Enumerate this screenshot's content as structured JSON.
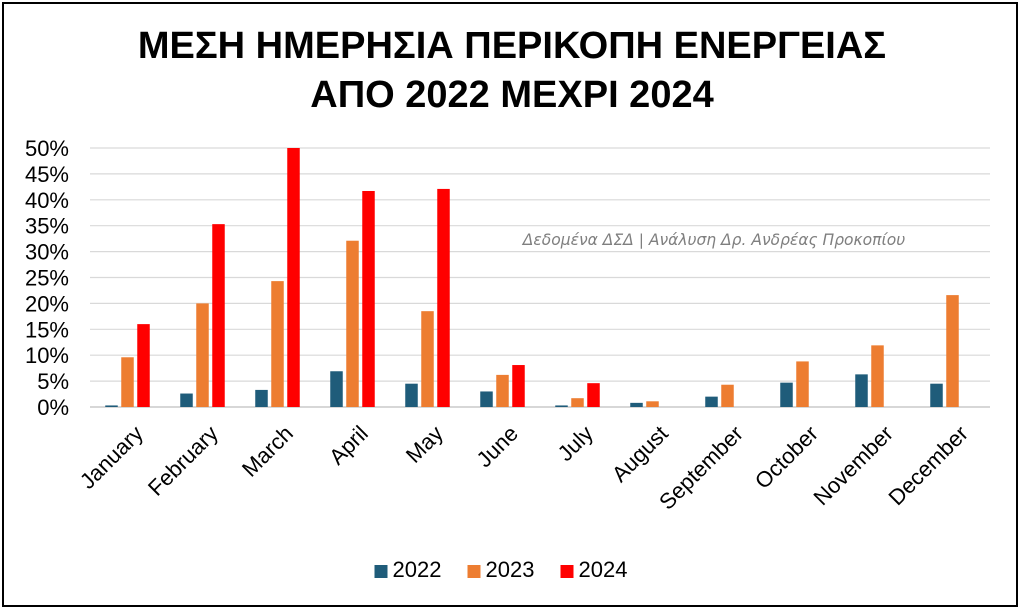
{
  "chart_data": {
    "type": "bar",
    "title_lines": [
      "ΜΕΣΗ ΗΜΕΡΗΣΙΑ ΠΕΡΙΚΟΠΗ ΕΝΕΡΓΕΙΑΣ",
      "ΑΠΟ 2022 ΜΕΧΡΙ 2024"
    ],
    "annotation": "Δεδομένα ΔΣΔ | Ανάλυση Δρ. Ανδρέας Προκοπίου",
    "categories": [
      "January",
      "February",
      "March",
      "April",
      "May",
      "June",
      "July",
      "August",
      "September",
      "October",
      "November",
      "December"
    ],
    "series": [
      {
        "name": "2022",
        "color": "#1f5c7a",
        "values": [
          0.3,
          2.6,
          3.3,
          6.9,
          4.5,
          3.0,
          0.3,
          0.8,
          2.0,
          4.7,
          6.3,
          4.5
        ]
      },
      {
        "name": "2023",
        "color": "#ed7d31",
        "values": [
          9.6,
          20.0,
          24.3,
          32.1,
          18.5,
          6.2,
          1.7,
          1.1,
          4.3,
          8.8,
          11.9,
          21.6
        ]
      },
      {
        "name": "2024",
        "color": "#ff0000",
        "values": [
          16.0,
          35.3,
          50.0,
          41.7,
          42.1,
          8.1,
          4.6,
          null,
          null,
          null,
          null,
          null
        ]
      }
    ],
    "ylim": [
      0,
      50
    ],
    "y_ticks": [
      "0%",
      "5%",
      "10%",
      "15%",
      "20%",
      "25%",
      "30%",
      "35%",
      "40%",
      "45%",
      "50%"
    ],
    "grid": true,
    "legend_position": "bottom"
  }
}
